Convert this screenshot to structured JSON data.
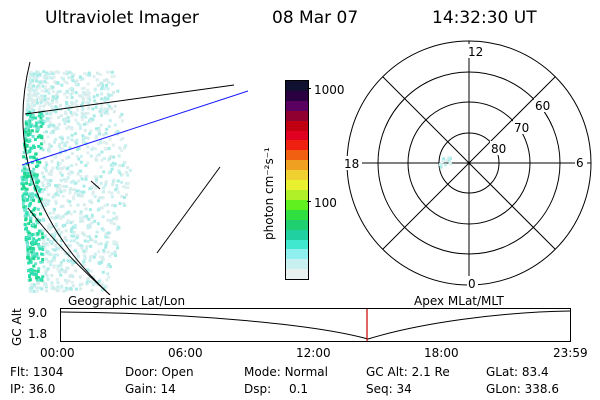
{
  "header": {
    "instrument": "Ultraviolet Imager",
    "date": "08 Mar 07",
    "time": "14:32:30 UT"
  },
  "colorbar": {
    "unit_label": "photon cm⁻²s⁻¹",
    "ticks": [
      "1000",
      "100"
    ],
    "colors": [
      "#101030",
      "#2a0040",
      "#5a0060",
      "#900030",
      "#c00010",
      "#e00020",
      "#f02010",
      "#f06010",
      "#f0a020",
      "#f0d030",
      "#e8f030",
      "#b0f028",
      "#60f020",
      "#30e040",
      "#20d070",
      "#20d0a0",
      "#40e8d0",
      "#90f0f0",
      "#c8f0f0",
      "#e8f0f0"
    ]
  },
  "polar_plot": {
    "mlt_labels": [
      "12",
      "6",
      "0",
      "18"
    ],
    "mlat_labels": [
      "60",
      "70",
      "80"
    ]
  },
  "timeline": {
    "left_label": "Geographic Lat/Lon",
    "right_label": "Apex MLat/MLT",
    "axis_title": "GC Alt",
    "y_ticks": [
      "9.0",
      "1.8"
    ],
    "x_ticks": [
      "00:00",
      "06:00",
      "12:00",
      "18:00",
      "23:59"
    ],
    "marker_color": "#cc0000"
  },
  "status": {
    "row1": [
      {
        "k": "Flt:",
        "v": "1304"
      },
      {
        "k": "Door:",
        "v": "Open"
      },
      {
        "k": "Mode:",
        "v": "Normal"
      },
      {
        "k": "GC Alt:",
        "v": "2.1 Re"
      },
      {
        "k": "GLat:",
        "v": "83.4"
      }
    ],
    "row2": [
      {
        "k": "IP:",
        "v": "36.0"
      },
      {
        "k": "Gain:",
        "v": "14"
      },
      {
        "k": "Dsp:",
        "v": "0.1"
      },
      {
        "k": "Seq:",
        "v": "34"
      },
      {
        "k": "GLon:",
        "v": "338.6"
      }
    ]
  }
}
